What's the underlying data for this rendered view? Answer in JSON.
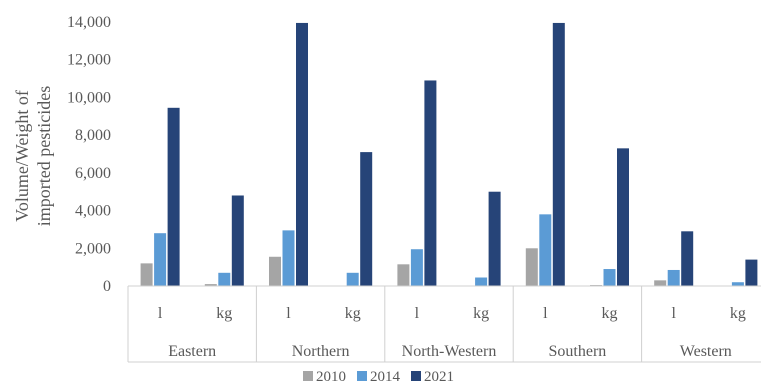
{
  "chart_data": {
    "type": "bar",
    "ylabel": "Volume/Weight of imported pesticides",
    "ylabel_lines": [
      "Volume/Weight of",
      "imported pesticides"
    ],
    "ylim": [
      0,
      14000
    ],
    "yticks": [
      0,
      2000,
      4000,
      6000,
      8000,
      10000,
      12000,
      14000
    ],
    "ytick_labels": [
      "0",
      "2,000",
      "4,000",
      "6,000",
      "8,000",
      "10,000",
      "12,000",
      "14,000"
    ],
    "grid": false,
    "legend_position": "bottom",
    "groups": [
      {
        "region": "Eastern",
        "units": [
          "l",
          "kg"
        ]
      },
      {
        "region": "Northern",
        "units": [
          "l",
          "kg"
        ]
      },
      {
        "region": "North-Western",
        "units": [
          "l",
          "kg"
        ]
      },
      {
        "region": "Southern",
        "units": [
          "l",
          "kg"
        ]
      },
      {
        "region": "Western",
        "units": [
          "l",
          "kg"
        ]
      }
    ],
    "categories": [
      "Eastern l",
      "Eastern kg",
      "Northern l",
      "Northern kg",
      "North-Western l",
      "North-Western kg",
      "Southern l",
      "Southern kg",
      "Western l",
      "Western kg"
    ],
    "series": [
      {
        "name": "2010",
        "color": "#a5a5a5",
        "values": [
          1200,
          100,
          1550,
          0,
          1150,
          0,
          2000,
          50,
          300,
          0
        ]
      },
      {
        "name": "2014",
        "color": "#5b9bd5",
        "values": [
          2800,
          700,
          2950,
          700,
          1950,
          450,
          3800,
          900,
          850,
          200
        ]
      },
      {
        "name": "2021",
        "color": "#264478",
        "values": [
          9450,
          4800,
          13950,
          7100,
          10900,
          5000,
          13950,
          7300,
          2900,
          1400
        ]
      }
    ]
  }
}
